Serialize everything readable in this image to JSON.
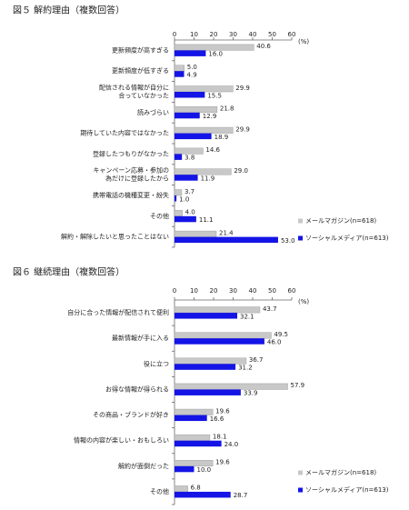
{
  "chart_data": [
    {
      "type": "bar",
      "orientation": "horizontal",
      "title": "図５ 解約理由（複数回答）",
      "x_label": "(%)",
      "categories": [
        "更新頻度が高すぎる",
        "更新頻度が低すぎる",
        "配信される情報が自分に\n合っていなかった",
        "読みづらい",
        "期待していた内容ではなかった",
        "登録したつもりがなかった",
        "キャンペーン応募・参加の\n為だけに登録したから",
        "携帯電話の機種変更・紛失",
        "その他",
        "解約・解除したいと思ったことはない"
      ],
      "series": [
        {
          "name": "メールマガジン(n=618)",
          "color": "#c8c8c8",
          "values": [
            40.6,
            5.0,
            29.9,
            21.8,
            29.9,
            14.6,
            29.0,
            3.7,
            4.0,
            21.4
          ],
          "value_labels": [
            "40.6",
            "5.0",
            "29.9",
            "21.8",
            "29.9",
            "14.6",
            "29.0",
            "3.7",
            "4.0",
            "21.4"
          ]
        },
        {
          "name": "ソーシャルメディア(n=613)",
          "color": "#1414e6",
          "values": [
            16.0,
            4.9,
            15.5,
            12.9,
            18.9,
            3.8,
            11.9,
            1.0,
            11.1,
            53.0
          ],
          "value_labels": [
            "16.0",
            "4.9",
            "15.5",
            "12.9",
            "18.9",
            "3.8",
            "11.9",
            "1.0",
            "11.1",
            "53.0"
          ]
        }
      ],
      "xlim": [
        0,
        60
      ],
      "xticks": [
        0,
        10,
        20,
        30,
        40,
        50,
        60
      ],
      "legend": "lower right",
      "grid": false
    },
    {
      "type": "bar",
      "orientation": "horizontal",
      "title": "図６ 継続理由（複数回答）",
      "x_label": "(%)",
      "categories": [
        "自分に合った情報が配信されて便利",
        "最新情報が手に入る",
        "役に立つ",
        "お得な情報が得られる",
        "その商品・ブランドが好き",
        "情報の内容が楽しい・おもしろい",
        "解約が面倒だった",
        "その他"
      ],
      "series": [
        {
          "name": "メールマガジン(n=618)",
          "color": "#c8c8c8",
          "values": [
            43.7,
            49.5,
            36.7,
            57.9,
            19.6,
            18.1,
            19.6,
            6.8
          ],
          "value_labels": [
            "43.7",
            "49.5",
            "36.7",
            "57.9",
            "19.6",
            "18.1",
            "19.6",
            "6.8"
          ]
        },
        {
          "name": "ソーシャルメディア(n=613)",
          "color": "#1414e6",
          "values": [
            32.1,
            46.0,
            31.2,
            33.9,
            16.6,
            24.0,
            10.0,
            28.7
          ],
          "value_labels": [
            "32.1",
            "46.0",
            "31.2",
            "33.9",
            "16.6",
            "24.0",
            "10.0",
            "28.7"
          ]
        }
      ],
      "xlim": [
        0,
        60
      ],
      "xticks": [
        0,
        10,
        20,
        30,
        40,
        50,
        60
      ],
      "legend": "lower right",
      "grid": false
    }
  ]
}
